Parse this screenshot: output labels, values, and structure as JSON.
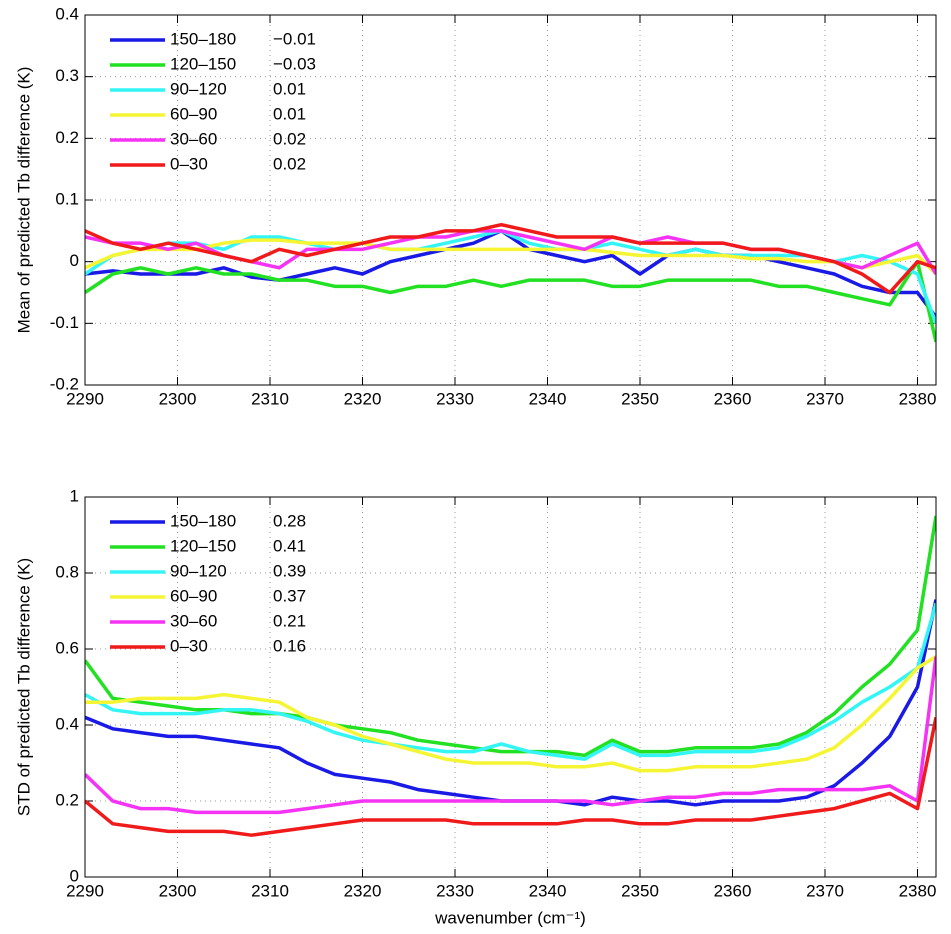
{
  "chart_data": [
    {
      "type": "line",
      "ylabel": "Mean of predicted Tb difference (K)",
      "x": [
        2290,
        2293,
        2296,
        2299,
        2302,
        2305,
        2308,
        2311,
        2314,
        2317,
        2320,
        2323,
        2326,
        2329,
        2332,
        2335,
        2338,
        2341,
        2344,
        2347,
        2350,
        2353,
        2356,
        2359,
        2362,
        2365,
        2368,
        2371,
        2374,
        2377,
        2380,
        2382
      ],
      "xlim": [
        2290,
        2382
      ],
      "xticks": [
        2290,
        2300,
        2310,
        2320,
        2330,
        2340,
        2350,
        2360,
        2370,
        2380
      ],
      "ylim": [
        -0.2,
        0.4
      ],
      "yticks": [
        -0.2,
        -0.1,
        0,
        0.1,
        0.2,
        0.3,
        0.4
      ],
      "grid": true,
      "legend": "upper left",
      "series": [
        {
          "name": "150–180",
          "annotation": "−0.01",
          "color": "#1a1ae6",
          "values": [
            -0.02,
            -0.015,
            -0.02,
            -0.02,
            -0.02,
            -0.01,
            -0.025,
            -0.03,
            -0.02,
            -0.01,
            -0.02,
            0.0,
            0.01,
            0.02,
            0.03,
            0.05,
            0.02,
            0.01,
            0.0,
            0.01,
            -0.02,
            0.01,
            0.02,
            0.01,
            0.01,
            0.0,
            -0.01,
            -0.02,
            -0.04,
            -0.05,
            -0.05,
            -0.09
          ]
        },
        {
          "name": "120–150",
          "annotation": "−0.03",
          "color": "#22e022",
          "values": [
            -0.05,
            -0.02,
            -0.01,
            -0.02,
            -0.01,
            -0.02,
            -0.02,
            -0.03,
            -0.03,
            -0.04,
            -0.04,
            -0.05,
            -0.04,
            -0.04,
            -0.03,
            -0.04,
            -0.03,
            -0.03,
            -0.03,
            -0.04,
            -0.04,
            -0.03,
            -0.03,
            -0.03,
            -0.03,
            -0.04,
            -0.04,
            -0.05,
            -0.06,
            -0.07,
            0.0,
            -0.13
          ]
        },
        {
          "name": "90–120",
          "annotation": "0.01",
          "color": "#33f5f5",
          "values": [
            -0.02,
            0.01,
            0.02,
            0.03,
            0.03,
            0.02,
            0.04,
            0.04,
            0.03,
            0.02,
            0.03,
            0.02,
            0.02,
            0.03,
            0.04,
            0.05,
            0.03,
            0.02,
            0.02,
            0.03,
            0.02,
            0.01,
            0.02,
            0.01,
            0.01,
            0.01,
            0.01,
            0.0,
            0.01,
            0.0,
            -0.02,
            -0.1
          ]
        },
        {
          "name": "60–90",
          "annotation": "0.01",
          "color": "#f5f533",
          "values": [
            -0.01,
            0.01,
            0.02,
            0.02,
            0.02,
            0.03,
            0.035,
            0.035,
            0.03,
            0.03,
            0.03,
            0.02,
            0.02,
            0.02,
            0.02,
            0.02,
            0.02,
            0.02,
            0.02,
            0.015,
            0.01,
            0.01,
            0.01,
            0.01,
            0.005,
            0.005,
            0.0,
            0.0,
            -0.01,
            0.0,
            0.01,
            -0.02
          ]
        },
        {
          "name": "30–60",
          "annotation": "0.02",
          "color": "#f533f5",
          "values": [
            0.04,
            0.03,
            0.03,
            0.02,
            0.03,
            0.01,
            0.0,
            -0.01,
            0.02,
            0.02,
            0.02,
            0.03,
            0.04,
            0.04,
            0.05,
            0.05,
            0.04,
            0.03,
            0.02,
            0.04,
            0.03,
            0.04,
            0.03,
            0.03,
            0.02,
            0.02,
            0.01,
            0.0,
            -0.01,
            0.01,
            0.03,
            -0.02
          ]
        },
        {
          "name": "0–30",
          "annotation": "0.02",
          "color": "#f01a1a",
          "values": [
            0.05,
            0.03,
            0.02,
            0.03,
            0.02,
            0.01,
            0.0,
            0.02,
            0.01,
            0.02,
            0.03,
            0.04,
            0.04,
            0.05,
            0.05,
            0.06,
            0.05,
            0.04,
            0.04,
            0.04,
            0.03,
            0.03,
            0.03,
            0.03,
            0.02,
            0.02,
            0.01,
            0.0,
            -0.02,
            -0.05,
            0.0,
            -0.01
          ]
        }
      ]
    },
    {
      "type": "line",
      "ylabel": "STD of predicted Tb difference (K)",
      "xlabel": "wavenumber (cm⁻¹)",
      "x": [
        2290,
        2293,
        2296,
        2299,
        2302,
        2305,
        2308,
        2311,
        2314,
        2317,
        2320,
        2323,
        2326,
        2329,
        2332,
        2335,
        2338,
        2341,
        2344,
        2347,
        2350,
        2353,
        2356,
        2359,
        2362,
        2365,
        2368,
        2371,
        2374,
        2377,
        2380,
        2382
      ],
      "xlim": [
        2290,
        2382
      ],
      "xticks": [
        2290,
        2300,
        2310,
        2320,
        2330,
        2340,
        2350,
        2360,
        2370,
        2380
      ],
      "ylim": [
        0,
        1
      ],
      "yticks": [
        0,
        0.2,
        0.4,
        0.6,
        0.8,
        1
      ],
      "grid": true,
      "legend": "upper left",
      "series": [
        {
          "name": "150–180",
          "annotation": "0.28",
          "color": "#1a1ae6",
          "values": [
            0.42,
            0.39,
            0.38,
            0.37,
            0.37,
            0.36,
            0.35,
            0.34,
            0.3,
            0.27,
            0.26,
            0.25,
            0.23,
            0.22,
            0.21,
            0.2,
            0.2,
            0.2,
            0.19,
            0.21,
            0.2,
            0.2,
            0.19,
            0.2,
            0.2,
            0.2,
            0.21,
            0.24,
            0.3,
            0.37,
            0.5,
            0.73
          ]
        },
        {
          "name": "120–150",
          "annotation": "0.41",
          "color": "#22e022",
          "values": [
            0.57,
            0.47,
            0.46,
            0.45,
            0.44,
            0.44,
            0.43,
            0.43,
            0.42,
            0.4,
            0.39,
            0.38,
            0.36,
            0.35,
            0.34,
            0.33,
            0.33,
            0.33,
            0.32,
            0.36,
            0.33,
            0.33,
            0.34,
            0.34,
            0.34,
            0.35,
            0.38,
            0.43,
            0.5,
            0.56,
            0.65,
            0.95
          ]
        },
        {
          "name": "90–120",
          "annotation": "0.39",
          "color": "#33f5f5",
          "values": [
            0.48,
            0.44,
            0.43,
            0.43,
            0.43,
            0.44,
            0.44,
            0.43,
            0.41,
            0.38,
            0.36,
            0.35,
            0.34,
            0.33,
            0.33,
            0.35,
            0.33,
            0.32,
            0.31,
            0.35,
            0.32,
            0.32,
            0.33,
            0.33,
            0.33,
            0.34,
            0.37,
            0.41,
            0.46,
            0.5,
            0.55,
            0.72
          ]
        },
        {
          "name": "60–90",
          "annotation": "0.37",
          "color": "#f5f533",
          "values": [
            0.46,
            0.46,
            0.47,
            0.47,
            0.47,
            0.48,
            0.47,
            0.46,
            0.42,
            0.4,
            0.37,
            0.35,
            0.33,
            0.31,
            0.3,
            0.3,
            0.3,
            0.29,
            0.29,
            0.3,
            0.28,
            0.28,
            0.29,
            0.29,
            0.29,
            0.3,
            0.31,
            0.34,
            0.4,
            0.47,
            0.55,
            0.58
          ]
        },
        {
          "name": "30–60",
          "annotation": "0.21",
          "color": "#f533f5",
          "values": [
            0.27,
            0.2,
            0.18,
            0.18,
            0.17,
            0.17,
            0.17,
            0.17,
            0.18,
            0.19,
            0.2,
            0.2,
            0.2,
            0.2,
            0.2,
            0.2,
            0.2,
            0.2,
            0.2,
            0.19,
            0.2,
            0.21,
            0.21,
            0.22,
            0.22,
            0.23,
            0.23,
            0.23,
            0.23,
            0.24,
            0.2,
            0.58
          ]
        },
        {
          "name": "0–30",
          "annotation": "0.16",
          "color": "#f01a1a",
          "values": [
            0.2,
            0.14,
            0.13,
            0.12,
            0.12,
            0.12,
            0.11,
            0.12,
            0.13,
            0.14,
            0.15,
            0.15,
            0.15,
            0.15,
            0.14,
            0.14,
            0.14,
            0.14,
            0.15,
            0.15,
            0.14,
            0.14,
            0.15,
            0.15,
            0.15,
            0.16,
            0.17,
            0.18,
            0.2,
            0.22,
            0.18,
            0.42
          ]
        }
      ]
    }
  ]
}
